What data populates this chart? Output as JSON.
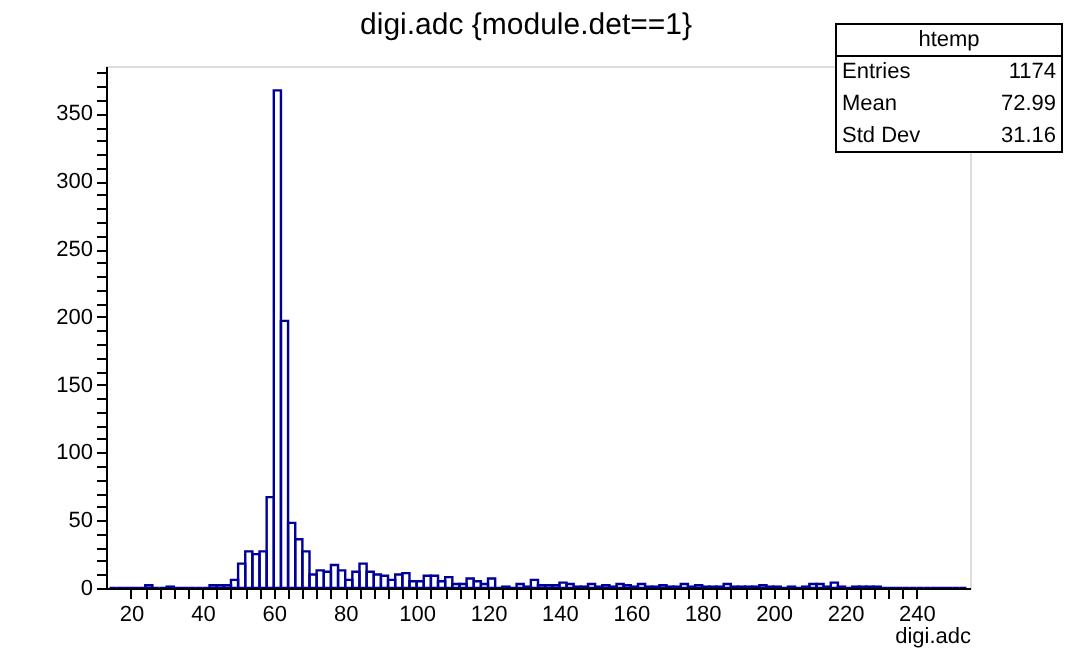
{
  "chart_data": {
    "type": "histogram",
    "title": "digi.adc {module.det==1}",
    "xlabel": "digi.adc",
    "color": "#000099",
    "bins": [
      14,
      16,
      18,
      20,
      22,
      24,
      26,
      28,
      30,
      32,
      34,
      36,
      38,
      40,
      42,
      44,
      46,
      48,
      50,
      52,
      54,
      56,
      58,
      60,
      62,
      64,
      66,
      68,
      70,
      72,
      74,
      76,
      78,
      80,
      82,
      84,
      86,
      88,
      90,
      92,
      94,
      96,
      98,
      100,
      102,
      104,
      106,
      108,
      110,
      112,
      114,
      116,
      118,
      120,
      122,
      124,
      126,
      128,
      130,
      132,
      134,
      136,
      138,
      140,
      142,
      144,
      146,
      148,
      150,
      152,
      154,
      156,
      158,
      160,
      162,
      164,
      166,
      168,
      170,
      172,
      174,
      176,
      178,
      180,
      182,
      184,
      186,
      188,
      190,
      192,
      194,
      196,
      198,
      200,
      202,
      204,
      206,
      208,
      210,
      212,
      214,
      216,
      218,
      220,
      222,
      224,
      226,
      228,
      230,
      232,
      234,
      236,
      238,
      240,
      242,
      244,
      246,
      248,
      250,
      252,
      254
    ],
    "values": [
      0,
      0,
      0,
      0,
      0,
      2,
      0,
      0,
      1,
      0,
      0,
      0,
      0,
      0,
      2,
      2,
      2,
      6,
      18,
      27,
      25,
      27,
      67,
      367,
      197,
      48,
      36,
      27,
      10,
      13,
      12,
      17,
      13,
      6,
      12,
      18,
      12,
      10,
      9,
      6,
      10,
      11,
      5,
      5,
      9,
      9,
      5,
      8,
      3,
      3,
      7,
      5,
      3,
      7,
      0,
      1,
      0,
      3,
      1,
      6,
      2,
      2,
      2,
      4,
      3,
      1,
      1,
      3,
      1,
      2,
      1,
      3,
      2,
      1,
      3,
      1,
      1,
      2,
      1,
      1,
      3,
      1,
      2,
      1,
      1,
      1,
      3,
      1,
      1,
      1,
      1,
      2,
      1,
      1,
      0,
      1,
      0,
      1,
      3,
      3,
      1,
      4,
      1,
      0,
      1,
      1,
      1,
      1,
      0,
      0,
      0,
      0,
      0,
      0,
      0,
      0,
      0,
      0,
      0,
      0
    ],
    "xlim": [
      13,
      255
    ],
    "ylim": [
      0,
      385
    ],
    "xticks": [
      20,
      {
        "value": 24,
        "label": null
      },
      {
        "value": 28,
        "label": null
      },
      {
        "value": 32,
        "label": null
      },
      {
        "value": 36,
        "label": null
      },
      40,
      {
        "value": 44,
        "label": null
      },
      {
        "value": 48,
        "label": null
      },
      {
        "value": 52,
        "label": null
      },
      {
        "value": 56,
        "label": null
      },
      60,
      {
        "value": 64,
        "label": null
      },
      {
        "value": 68,
        "label": null
      },
      {
        "value": 72,
        "label": null
      },
      {
        "value": 76,
        "label": null
      },
      80,
      {
        "value": 84,
        "label": null
      },
      {
        "value": 88,
        "label": null
      },
      {
        "value": 92,
        "label": null
      },
      {
        "value": 96,
        "label": null
      },
      100,
      {
        "value": 104,
        "label": null
      },
      {
        "value": 108,
        "label": null
      },
      {
        "value": 112,
        "label": null
      },
      {
        "value": 116,
        "label": null
      },
      120,
      {
        "value": 124,
        "label": null
      },
      {
        "value": 128,
        "label": null
      },
      {
        "value": 132,
        "label": null
      },
      {
        "value": 136,
        "label": null
      },
      140,
      {
        "value": 144,
        "label": null
      },
      {
        "value": 148,
        "label": null
      },
      {
        "value": 152,
        "label": null
      },
      {
        "value": 156,
        "label": null
      },
      160,
      {
        "value": 164,
        "label": null
      },
      {
        "value": 168,
        "label": null
      },
      {
        "value": 172,
        "label": null
      },
      {
        "value": 176,
        "label": null
      },
      180,
      {
        "value": 184,
        "label": null
      },
      {
        "value": 188,
        "label": null
      },
      {
        "value": 192,
        "label": null
      },
      {
        "value": 196,
        "label": null
      },
      200,
      {
        "value": 204,
        "label": null
      },
      {
        "value": 208,
        "label": null
      },
      {
        "value": 212,
        "label": null
      },
      {
        "value": 216,
        "label": null
      },
      220,
      {
        "value": 224,
        "label": null
      },
      {
        "value": 228,
        "label": null
      },
      {
        "value": 232,
        "label": null
      },
      {
        "value": 236,
        "label": null
      },
      240
    ],
    "yticks": [
      0,
      {
        "value": 10,
        "label": null
      },
      {
        "value": 20,
        "label": null
      },
      {
        "value": 30,
        "label": null
      },
      {
        "value": 40,
        "label": null
      },
      50,
      {
        "value": 60,
        "label": null
      },
      {
        "value": 70,
        "label": null
      },
      {
        "value": 80,
        "label": null
      },
      {
        "value": 90,
        "label": null
      },
      100,
      {
        "value": 110,
        "label": null
      },
      {
        "value": 120,
        "label": null
      },
      {
        "value": 130,
        "label": null
      },
      {
        "value": 140,
        "label": null
      },
      150,
      {
        "value": 160,
        "label": null
      },
      {
        "value": 170,
        "label": null
      },
      {
        "value": 180,
        "label": null
      },
      {
        "value": 190,
        "label": null
      },
      200,
      {
        "value": 210,
        "label": null
      },
      {
        "value": 220,
        "label": null
      },
      {
        "value": 230,
        "label": null
      },
      {
        "value": 240,
        "label": null
      },
      250,
      {
        "value": 260,
        "label": null
      },
      {
        "value": 270,
        "label": null
      },
      {
        "value": 280,
        "label": null
      },
      {
        "value": 290,
        "label": null
      },
      300,
      {
        "value": 310,
        "label": null
      },
      {
        "value": 320,
        "label": null
      },
      {
        "value": 330,
        "label": null
      },
      {
        "value": 340,
        "label": null
      },
      350,
      {
        "value": 360,
        "label": null
      },
      {
        "value": 370,
        "label": null
      },
      {
        "value": 380,
        "label": null
      }
    ],
    "grid": false,
    "annotations": [
      "htemp",
      "Entries",
      "1174",
      "Mean",
      "72.99",
      "Std Dev",
      "31.16"
    ]
  }
}
